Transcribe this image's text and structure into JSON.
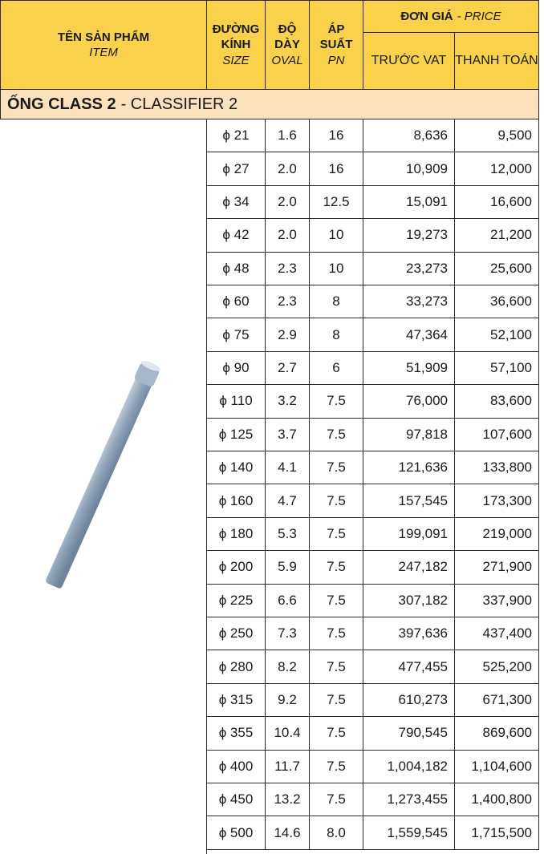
{
  "header": {
    "item": "TÊN SẢN PHẨM",
    "item_en": "ITEM",
    "size": [
      "ĐƯỜNG",
      "KÍNH"
    ],
    "size_en": "SIZE",
    "oval": [
      "ĐỘ",
      "DÀY"
    ],
    "oval_en": "OVAL",
    "pn": [
      "ÁP",
      "SUẤT"
    ],
    "pn_en": "PN",
    "price": "ĐƠN GIÁ",
    "price_en": "- PRICE",
    "before_vat": "TRƯỚC VAT",
    "total": "THANH TOÁN"
  },
  "section": {
    "name": "ỐNG CLASS 2",
    "subtitle": "- CLASSIFIER 2"
  },
  "table": {
    "rows": [
      [
        "ϕ 21",
        "1.6",
        "16",
        "8,636",
        "9,500"
      ],
      [
        "ϕ 27",
        "2.0",
        "16",
        "10,909",
        "12,000"
      ],
      [
        "ϕ 34",
        "2.0",
        "12.5",
        "15,091",
        "16,600"
      ],
      [
        "ϕ 42",
        "2.0",
        "10",
        "19,273",
        "21,200"
      ],
      [
        "ϕ 48",
        "2.3",
        "10",
        "23,273",
        "25,600"
      ],
      [
        "ϕ 60",
        "2.3",
        "8",
        "33,273",
        "36,600"
      ],
      [
        "ϕ 75",
        "2.9",
        "8",
        "47,364",
        "52,100"
      ],
      [
        "ϕ 90",
        "2.7",
        "6",
        "51,909",
        "57,100"
      ],
      [
        "ϕ 110",
        "3.2",
        "7.5",
        "76,000",
        "83,600"
      ],
      [
        "ϕ 125",
        "3.7",
        "7.5",
        "97,818",
        "107,600"
      ],
      [
        "ϕ 140",
        "4.1",
        "7.5",
        "121,636",
        "133,800"
      ],
      [
        "ϕ 160",
        "4.7",
        "7.5",
        "157,545",
        "173,300"
      ],
      [
        "ϕ 180",
        "5.3",
        "7.5",
        "199,091",
        "219,000"
      ],
      [
        "ϕ 200",
        "5.9",
        "7.5",
        "247,182",
        "271,900"
      ],
      [
        "ϕ 225",
        "6.6",
        "7.5",
        "307,182",
        "337,900"
      ],
      [
        "ϕ 250",
        "7.3",
        "7.5",
        "397,636",
        "437,400"
      ],
      [
        "ϕ 280",
        "8.2",
        "7.5",
        "477,455",
        "525,200"
      ],
      [
        "ϕ 315",
        "9.2",
        "7.5",
        "610,273",
        "671,300"
      ],
      [
        "ϕ 355",
        "10.4",
        "7.5",
        "790,545",
        "869,600"
      ],
      [
        "ϕ 400",
        "11.7",
        "7.5",
        "1,004,182",
        "1,104,600"
      ],
      [
        "ϕ 450",
        "13.2",
        "7.5",
        "1,273,455",
        "1,400,800"
      ],
      [
        "ϕ 500",
        "14.6",
        "8.0",
        "1,559,545",
        "1,715,500"
      ]
    ]
  }
}
